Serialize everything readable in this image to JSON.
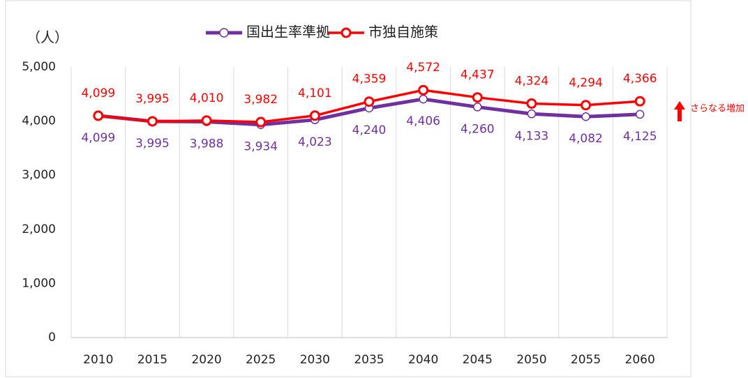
{
  "chart_data": {
    "type": "line",
    "y_axis_label": "（人）",
    "categories": [
      "2010",
      "2015",
      "2020",
      "2025",
      "2030",
      "2035",
      "2040",
      "2045",
      "2050",
      "2055",
      "2060"
    ],
    "series": [
      {
        "name": "国出生率準拠",
        "color": "#7030a0",
        "values": [
          4099,
          3995,
          3988,
          3934,
          4023,
          4240,
          4406,
          4260,
          4133,
          4082,
          4125
        ],
        "value_labels": [
          "4,099",
          "3,995",
          "3,988",
          "3,934",
          "4,023",
          "4,240",
          "4,406",
          "4,260",
          "4,133",
          "4,082",
          "4,125"
        ]
      },
      {
        "name": "市独自施策",
        "color": "#ff0000",
        "values": [
          4099,
          3995,
          4010,
          3982,
          4101,
          4359,
          4572,
          4437,
          4324,
          4294,
          4366
        ],
        "value_labels": [
          "4,099",
          "3,995",
          "4,010",
          "3,982",
          "4,101",
          "4,359",
          "4,572",
          "4,437",
          "4,324",
          "4,294",
          "4,366"
        ]
      }
    ],
    "ylim": [
      0,
      5000
    ],
    "yticks": [
      0,
      {
        "value": 1000,
        "label": "1,000"
      },
      {
        "value": 2000,
        "label": "2,000"
      },
      {
        "value": 3000,
        "label": "3,000"
      },
      {
        "value": 4000,
        "label": "4,000"
      },
      {
        "value": 5000,
        "label": "5,000"
      }
    ],
    "grid": "x",
    "legend": "top",
    "annotation": "さらなる増加"
  }
}
